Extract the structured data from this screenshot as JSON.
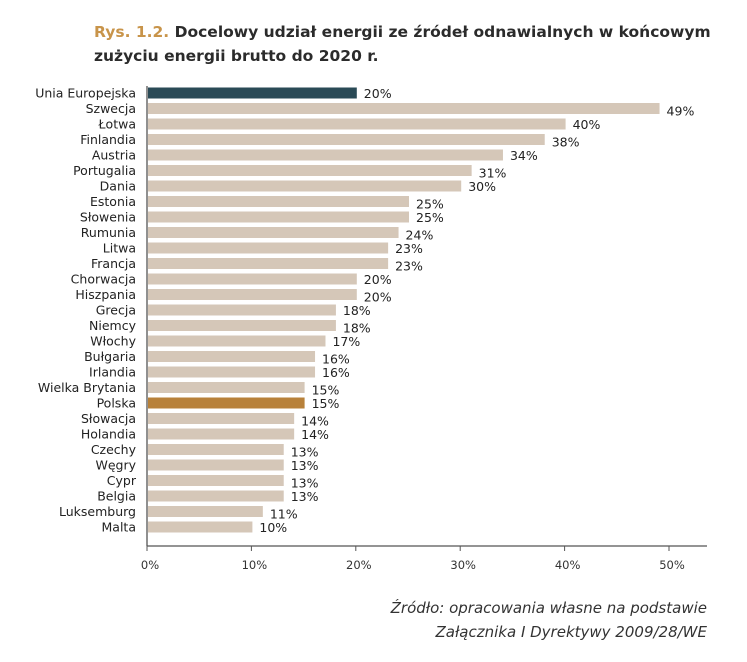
{
  "title": {
    "number": "Rys. 1.2.",
    "text": "Docelowy udział energii ze źródeł odnawialnych w końcowym zużyciu energii brutto do 2020 r."
  },
  "source": {
    "line1": "Źródło: opracowania własne na podstawie",
    "line2": "Załącznika I Dyrektywy 2009/28/WE"
  },
  "chart_data": {
    "type": "bar",
    "orientation": "horizontal",
    "categories": [
      "Unia Europejska",
      "Szwecja",
      "Łotwa",
      "Finlandia",
      "Austria",
      "Portugalia",
      "Dania",
      "Estonia",
      "Słowenia",
      "Rumunia",
      "Litwa",
      "Francja",
      "Chorwacja",
      "Hiszpania",
      "Grecja",
      "Niemcy",
      "Włochy",
      "Bułgaria",
      "Irlandia",
      "Wielka Brytania",
      "Polska",
      "Słowacja",
      "Holandia",
      "Czechy",
      "Węgry",
      "Cypr",
      "Belgia",
      "Luksemburg",
      "Malta"
    ],
    "values": [
      20,
      49,
      40,
      38,
      34,
      31,
      30,
      25,
      25,
      24,
      23,
      23,
      20,
      20,
      18,
      18,
      17,
      16,
      16,
      15,
      15,
      14,
      14,
      13,
      13,
      13,
      13,
      11,
      10
    ],
    "value_labels": [
      "20%",
      "49%",
      "40%",
      "38%",
      "34%",
      "31%",
      "30%",
      "25%",
      "25%",
      "24%",
      "23%",
      "23%",
      "20%",
      "20%",
      "18%",
      "18%",
      "17%",
      "16%",
      "16%",
      "15%",
      "15%",
      "14%",
      "14%",
      "13%",
      "13%",
      "13%",
      "13%",
      "11%",
      "10%"
    ],
    "xlim": [
      0,
      53
    ],
    "xticks": [
      0,
      10,
      20,
      30,
      40,
      50
    ],
    "xtick_labels": [
      "0%",
      "10%",
      "20%",
      "30%",
      "40%",
      "50%"
    ],
    "xlabel": "",
    "ylabel": "",
    "grid": false,
    "colors": {
      "default": "#d5c7b8",
      "Unia Europejska": "#2a4a56",
      "Polska": "#b8813a"
    }
  }
}
